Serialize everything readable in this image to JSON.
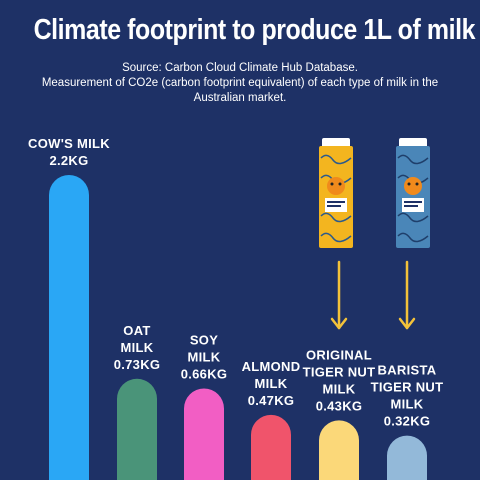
{
  "chart_data": {
    "type": "bar",
    "title": "Climate footprint to produce 1L of milk",
    "subtitle": [
      "Source: Carbon Cloud Climate Hub Database.",
      "Measurement of CO2e (carbon footprint equivalent) of each type of milk in the",
      "Australian market."
    ],
    "unit": "KG",
    "categories": [
      [
        "COW'S MILK"
      ],
      [
        "OAT",
        "MILK"
      ],
      [
        "SOY",
        "MILK"
      ],
      [
        "ALMOND",
        "MILK"
      ],
      [
        "ORIGINAL",
        "TIGER NUT",
        "MILK"
      ],
      [
        "BARISTA",
        "TIGER NUT",
        "MILK"
      ]
    ],
    "values": [
      2.2,
      0.73,
      0.66,
      0.47,
      0.43,
      0.32
    ],
    "value_labels": [
      "2.2KG",
      "0.73KG",
      "0.66KG",
      "0.47KG",
      "0.43KG",
      "0.32KG"
    ],
    "colors": [
      "#2aa7f5",
      "#4a9479",
      "#f25ec4",
      "#f0546b",
      "#fbd879",
      "#93b9d9"
    ],
    "grid": false,
    "legend": "none"
  },
  "products": [
    {
      "name": "original-tiger-nut-carton",
      "colors": {
        "body": "#f3b51f",
        "pattern": "#2b5a8c",
        "cap": "#ffffff"
      }
    },
    {
      "name": "barista-tiger-nut-carton",
      "colors": {
        "body": "#4a86b8",
        "pattern": "#1f3f6b",
        "cap": "#ffffff"
      }
    }
  ]
}
